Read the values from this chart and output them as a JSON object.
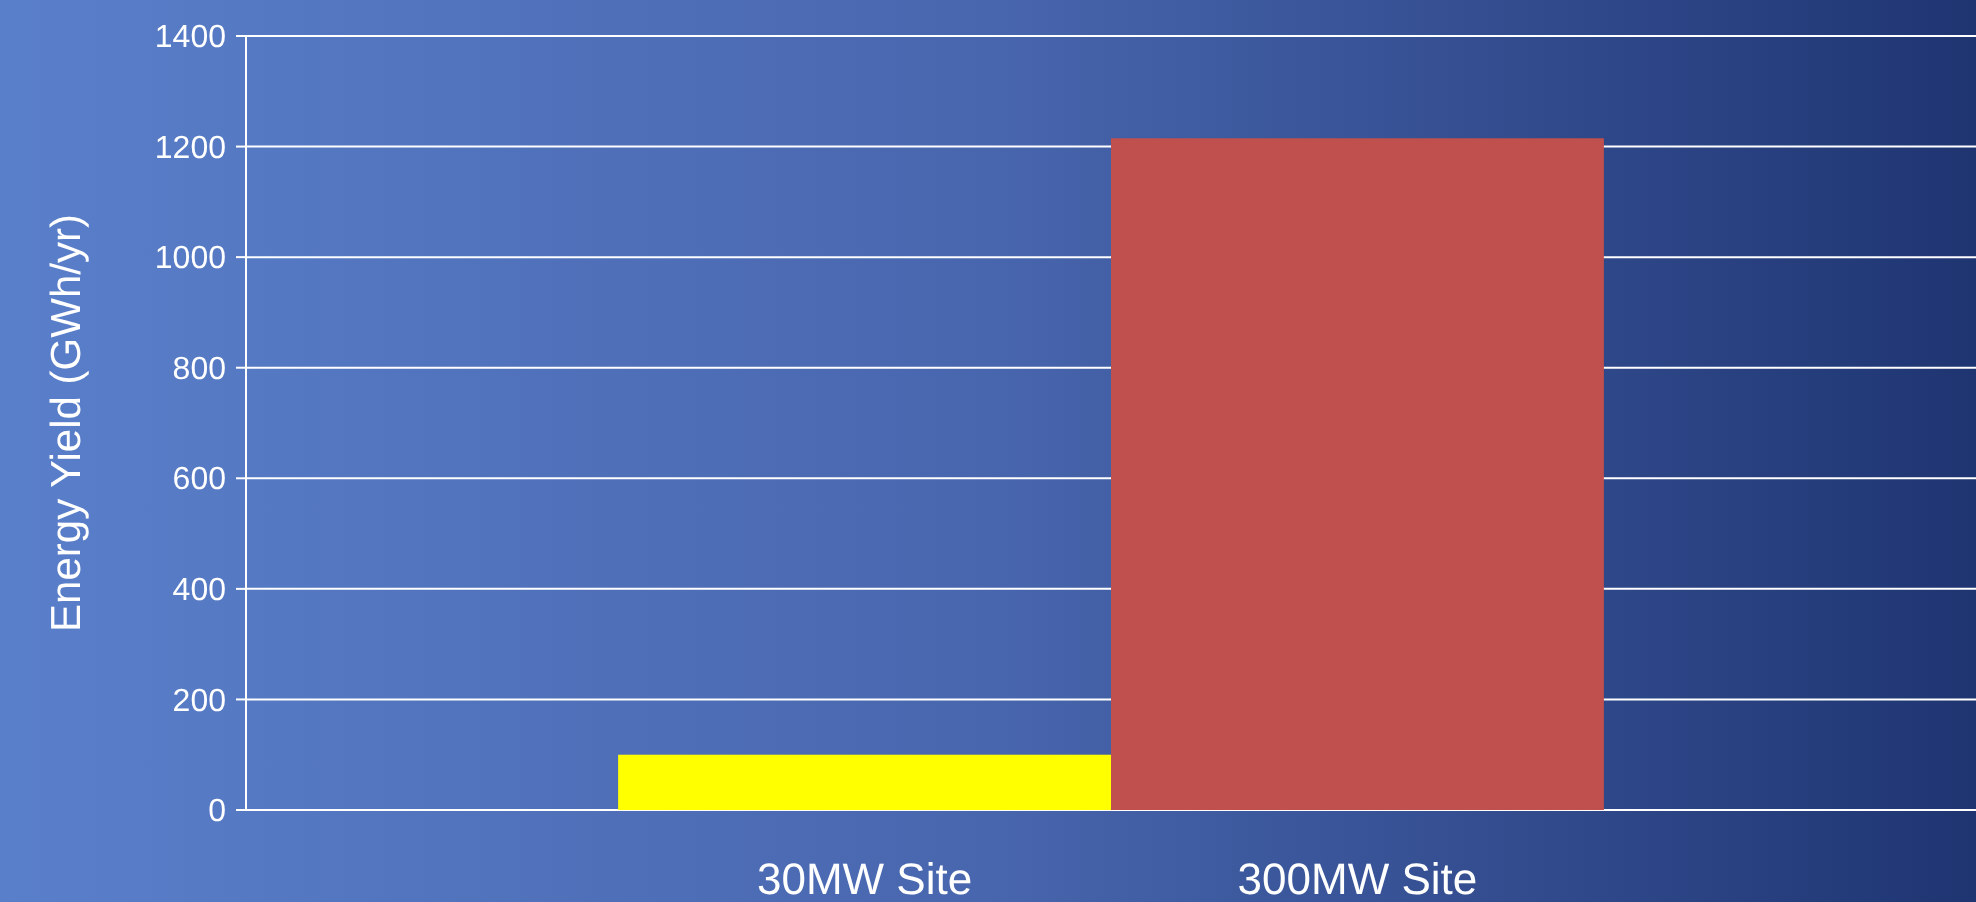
{
  "chart_data": {
    "type": "bar",
    "ylabel": "Energy Yield (GWh/yr)",
    "categories": [
      "30MW Site",
      "300MW Site"
    ],
    "values": [
      100,
      1215
    ],
    "colors": [
      "#ffff00",
      "#c0504d"
    ],
    "ylim": [
      0,
      1400
    ],
    "yticks": [
      0,
      200,
      400,
      600,
      800,
      1000,
      1200,
      1400
    ],
    "grid": "y"
  }
}
